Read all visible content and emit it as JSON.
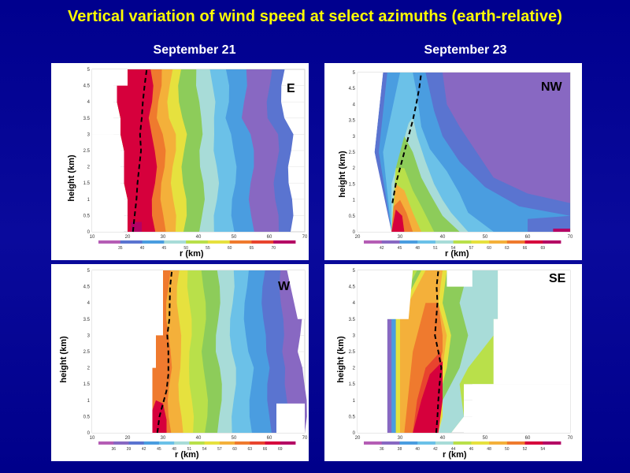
{
  "title": "Vertical variation of wind speed at select azimuths (earth-relative)",
  "dates": {
    "left": "September 21",
    "right": "September 23"
  },
  "colors": {
    "background": "#00008e",
    "title": "#ffff00",
    "scale": [
      "#b55db5",
      "#8868c2",
      "#5a74d0",
      "#4a9de0",
      "#6bc1e8",
      "#a8dcd8",
      "#8dcc5a",
      "#b9e04a",
      "#e6e13e",
      "#f4b03a",
      "#ef7a2e",
      "#e8442e",
      "#d6003c",
      "#b40064"
    ]
  },
  "chart_data": [
    {
      "type": "heatmap",
      "panel": "E",
      "date": "September 21",
      "xlabel": "r (km)",
      "ylabel": "height (km)",
      "xlim": [
        10,
        70
      ],
      "ylim": [
        0,
        5
      ],
      "x_ticks": [
        "10",
        "20",
        "30",
        "40",
        "50",
        "60",
        "70"
      ],
      "y_ticks": [
        "0",
        "0.5",
        "1",
        "1.5",
        "2",
        "2.5",
        "3",
        "3.5",
        "4",
        "4.5",
        "5"
      ],
      "legend_labels": [
        "35",
        "40",
        "45",
        "50",
        "55",
        "60",
        "65",
        "70"
      ],
      "rmw_line": [
        [
          21.5,
          0
        ],
        [
          22,
          0.5
        ],
        [
          22.5,
          1
        ],
        [
          22.8,
          1.5
        ],
        [
          23.3,
          2
        ],
        [
          23.8,
          2.5
        ],
        [
          23.5,
          3
        ],
        [
          24,
          3.5
        ],
        [
          24.3,
          4
        ],
        [
          24.8,
          4.5
        ],
        [
          25.4,
          5
        ]
      ],
      "contour_boundaries": [
        {
          "level": ">=70",
          "x": [
            20,
            20,
            21,
            20,
            22,
            22,
            21,
            20.5,
            21
          ]
        },
        {
          "level": "65",
          "x": [
            28,
            28,
            27.5,
            26.5,
            26.5,
            26,
            26,
            26,
            25.5
          ]
        },
        {
          "level": "60",
          "x": [
            31,
            31,
            30.5,
            30,
            29.5,
            29,
            29.2,
            28.8,
            28.4
          ]
        },
        {
          "level": "55",
          "x": [
            35,
            35,
            34,
            34,
            33,
            32.5,
            32.5,
            32,
            31.5
          ]
        },
        {
          "level": "50",
          "x": [
            43,
            43,
            43,
            41.5,
            41,
            41,
            39,
            39,
            38
          ]
        },
        {
          "level": "45",
          "x": [
            50,
            49,
            49,
            50,
            51,
            50,
            48,
            47,
            45
          ]
        },
        {
          "level": "40",
          "x": [
            62,
            62,
            61,
            60,
            60,
            58,
            57,
            56,
            55
          ]
        }
      ],
      "domain_x_min": [
        19,
        19,
        18,
        17,
        17,
        18,
        17,
        16,
        16
      ],
      "y_rows": [
        0,
        0.5,
        1,
        1.5,
        2,
        2.5,
        3,
        3.5,
        4.5
      ]
    },
    {
      "type": "heatmap",
      "panel": "NW",
      "date": "September 23",
      "xlabel": "r (km)",
      "ylabel": "height (km)",
      "xlim": [
        20,
        70
      ],
      "ylim": [
        0,
        5
      ],
      "x_ticks": [
        "20",
        "30",
        "40",
        "50",
        "60",
        "70"
      ],
      "y_ticks": [
        "0",
        "0.5",
        "1",
        "1.5",
        "2",
        "2.5",
        "3",
        "3.5",
        "4",
        "4.5",
        "5"
      ],
      "legend_labels": [
        "42",
        "45",
        "48",
        "51",
        "54",
        "57",
        "60",
        "63",
        "66",
        "69"
      ],
      "rmw_line": [
        [
          28.2,
          0.9
        ],
        [
          29,
          1.5
        ],
        [
          30,
          2
        ],
        [
          31,
          2.5
        ],
        [
          32,
          3
        ],
        [
          33,
          3.5
        ],
        [
          33.8,
          4
        ],
        [
          34.5,
          4.5
        ],
        [
          35,
          5
        ]
      ],
      "contour_boundaries": [
        {
          "level": ">=66",
          "x": [
            30,
            30,
            29.5,
            28.5
          ]
        },
        {
          "level": "63",
          "x": [
            32,
            32,
            31,
            30,
            29.5
          ]
        },
        {
          "level": "60",
          "x": [
            34,
            34,
            33,
            31.5,
            30.5,
            29.5
          ]
        },
        {
          "level": "57",
          "x": [
            39,
            38,
            36,
            33.5,
            32,
            30.5
          ]
        },
        {
          "level": "54",
          "x": [
            46,
            43,
            41,
            38,
            35,
            33,
            31.5
          ]
        },
        {
          "level": "51",
          "x": [
            53,
            52,
            50,
            46,
            42,
            38,
            35,
            33
          ]
        },
        {
          "level": "48",
          "x": [
            62,
            62,
            60,
            55,
            50,
            44,
            38,
            35,
            33.5
          ]
        },
        {
          "level": "45",
          "x": [
            70,
            70,
            70,
            66,
            60,
            55,
            48,
            42,
            38,
            35.5
          ]
        }
      ],
      "domain_x_min": [
        28,
        28,
        27,
        27,
        26,
        25,
        24,
        24,
        25,
        26
      ]
    },
    {
      "type": "heatmap",
      "panel": "W",
      "date": "September 21",
      "xlabel": "r (km)",
      "ylabel": "height (km)",
      "xlim": [
        10,
        70
      ],
      "ylim": [
        0,
        5
      ],
      "x_ticks": [
        "10",
        "20",
        "30",
        "40",
        "50",
        "60",
        "70"
      ],
      "y_ticks": [
        "0",
        "0.5",
        "1",
        "1.5",
        "2",
        "2.5",
        "3",
        "3.5",
        "4",
        "4.5",
        "5"
      ],
      "legend_labels": [
        "36",
        "39",
        "42",
        "45",
        "48",
        "51",
        "54",
        "57",
        "60",
        "63",
        "66",
        "69"
      ],
      "rmw_line": [
        [
          28.4,
          0
        ],
        [
          29,
          0.5
        ],
        [
          30,
          0.9
        ],
        [
          31,
          1.3
        ],
        [
          31.5,
          1.8
        ],
        [
          31.5,
          2.5
        ],
        [
          31.2,
          3
        ],
        [
          31.8,
          3.5
        ],
        [
          32,
          4.5
        ],
        [
          32.5,
          5
        ]
      ]
    },
    {
      "type": "heatmap",
      "panel": "SE",
      "date": "September 23",
      "xlabel": "r (km)",
      "ylabel": "height (km)",
      "xlim": [
        20,
        70
      ],
      "ylim": [
        0,
        5
      ],
      "x_ticks": [
        "20",
        "30",
        "40",
        "50",
        "60",
        "70"
      ],
      "y_ticks": [
        "0",
        "0.5",
        "1",
        "1.5",
        "2",
        "2.5",
        "3",
        "3.5",
        "4",
        "4.5",
        "5"
      ],
      "legend_labels": [
        "36",
        "38",
        "40",
        "42",
        "44",
        "46",
        "48",
        "50",
        "52",
        "54"
      ],
      "rmw_line": [
        [
          38.5,
          0
        ],
        [
          38.8,
          0.5
        ],
        [
          39,
          1
        ],
        [
          39.3,
          1.5
        ],
        [
          39.7,
          2
        ],
        [
          39,
          2.5
        ],
        [
          38.2,
          3
        ],
        [
          38.5,
          3.5
        ],
        [
          38.8,
          4
        ],
        [
          38.6,
          4.5
        ],
        [
          39,
          5
        ]
      ]
    }
  ]
}
